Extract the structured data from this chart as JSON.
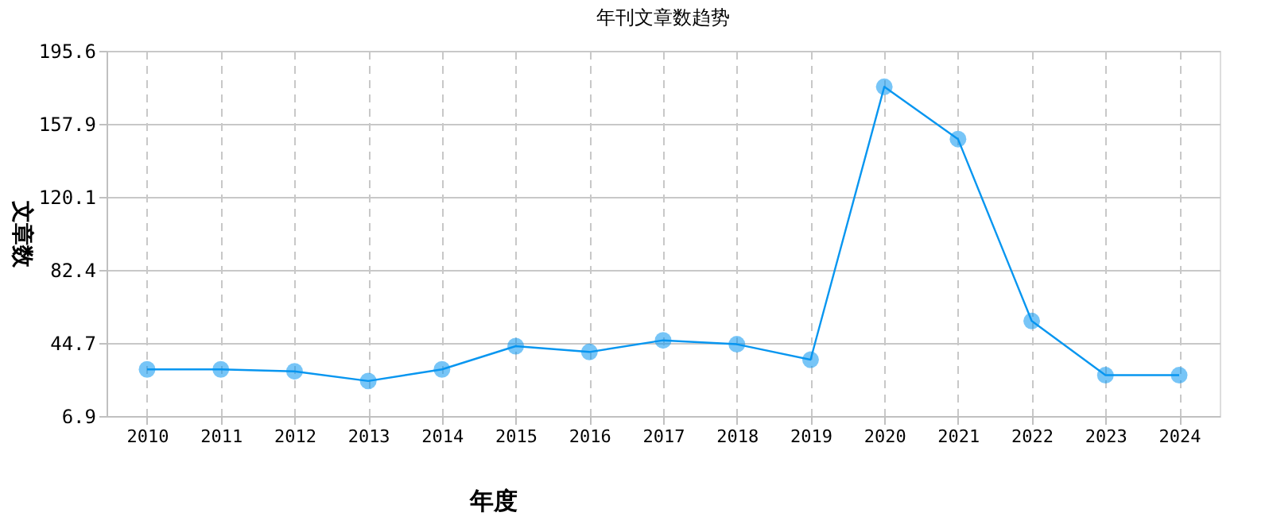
{
  "chart_data": {
    "type": "line",
    "title": "年刊文章数趋势",
    "xlabel": "年度",
    "ylabel": "文章数",
    "categories": [
      "2010",
      "2011",
      "2012",
      "2013",
      "2014",
      "2015",
      "2016",
      "2017",
      "2018",
      "2019",
      "2020",
      "2021",
      "2022",
      "2023",
      "2024"
    ],
    "series": [
      {
        "color": "#0896f0",
        "values": [
          31,
          31,
          30,
          25,
          31,
          43,
          40,
          46,
          44,
          36,
          177,
          150,
          56,
          28,
          28
        ]
      }
    ],
    "ylim": [
      6.9,
      195.6
    ],
    "yticks": [
      6.9,
      44.7,
      82.4,
      120.1,
      157.9,
      195.6
    ],
    "grid": true,
    "marker": "circle",
    "line_style": "solid"
  }
}
